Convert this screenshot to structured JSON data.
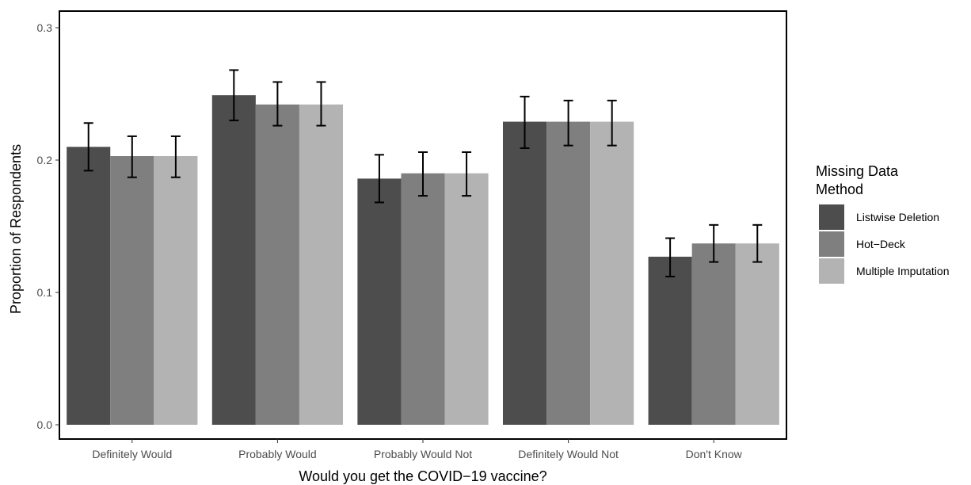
{
  "chart_data": {
    "type": "bar",
    "xlabel": "Would you get the COVID−19 vaccine?",
    "ylabel": "Proportion of Respondents",
    "ylim": [
      0,
      0.32
    ],
    "yticks": [
      "0.0",
      "0.1",
      "0.2",
      "0.3"
    ],
    "categories": [
      "Definitely Would",
      "Probably Would",
      "Probably Would Not",
      "Definitely Would Not",
      "Don't Know"
    ],
    "legend": {
      "title_lines": [
        "Missing Data",
        "Method"
      ],
      "placement": "right"
    },
    "grid": false,
    "series": [
      {
        "name": "Listwise Deletion",
        "color": "#4d4d4d",
        "values": [
          0.21,
          0.249,
          0.186,
          0.229,
          0.127
        ],
        "err_low": [
          0.192,
          0.23,
          0.168,
          0.209,
          0.112
        ],
        "err_high": [
          0.228,
          0.268,
          0.204,
          0.248,
          0.141
        ]
      },
      {
        "name": "Hot−Deck",
        "color": "#7f7f7f",
        "values": [
          0.203,
          0.242,
          0.19,
          0.229,
          0.137
        ],
        "err_low": [
          0.187,
          0.226,
          0.173,
          0.211,
          0.123
        ],
        "err_high": [
          0.218,
          0.259,
          0.206,
          0.245,
          0.151
        ]
      },
      {
        "name": "Multiple Imputation",
        "color": "#b3b3b3",
        "values": [
          0.203,
          0.242,
          0.19,
          0.229,
          0.137
        ],
        "err_low": [
          0.187,
          0.226,
          0.173,
          0.211,
          0.123
        ],
        "err_high": [
          0.218,
          0.259,
          0.206,
          0.245,
          0.151
        ]
      }
    ]
  }
}
